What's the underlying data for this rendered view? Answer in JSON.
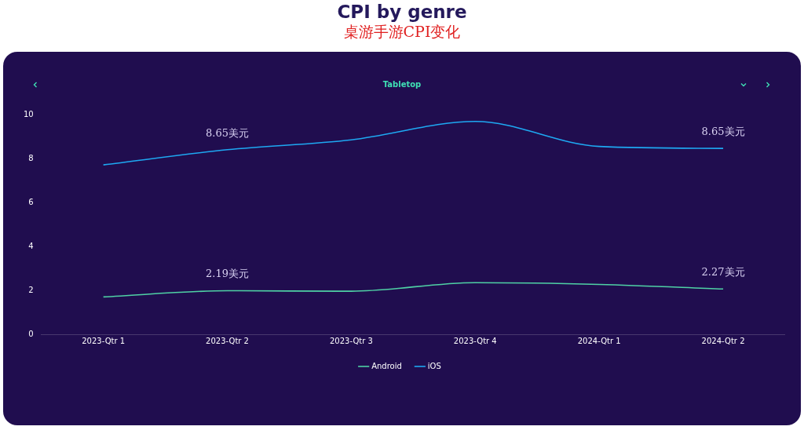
{
  "chart_data": {
    "type": "line",
    "title": "CPI by genre",
    "subtitle": "桌游手游CPI变化",
    "categories": [
      "2023-Qtr 1",
      "2023-Qtr 2",
      "2023-Qtr 3",
      "2023-Qtr 4",
      "2024-Qtr 1",
      "2024-Qtr 2"
    ],
    "series": [
      {
        "name": "Android",
        "color": "#4fd1a5",
        "values": [
          1.7,
          1.98,
          1.96,
          2.35,
          2.27,
          2.06
        ]
      },
      {
        "name": "iOS",
        "color": "#1ea8f2",
        "values": [
          7.71,
          8.4,
          8.85,
          9.69,
          8.55,
          8.46
        ]
      }
    ],
    "ylim": [
      0,
      10
    ],
    "yticks": [
      0,
      2,
      4,
      6,
      8,
      10
    ],
    "grid": false,
    "legend": "bottom",
    "marker": "none",
    "line_style": "solid",
    "annotations": [
      "Tabletop",
      {
        "text": "8.65美元",
        "x": "2023-Qtr 2",
        "y": 8.4
      },
      {
        "text": "2.19美元",
        "x": "2023-Qtr 2",
        "y": 1.98
      },
      {
        "text": "8.65美元",
        "x": "2024-Qtr 2",
        "y": 8.46
      },
      {
        "text": "2.27美元",
        "x": "2024-Qtr 2",
        "y": 2.06
      }
    ]
  }
}
